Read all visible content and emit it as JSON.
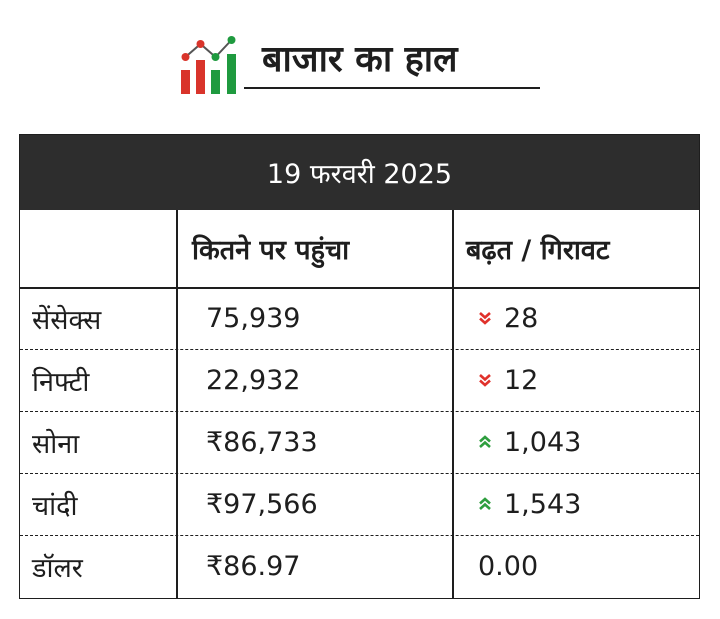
{
  "title": "बाजार का हाल",
  "date": "19 फरवरी 2025",
  "columns": [
    "",
    "कितने पर पहुंचा",
    "बढ़त / गिरावट"
  ],
  "rows": [
    {
      "name": "सेंसेक्स",
      "value": "75,939",
      "change": "28",
      "direction": "down"
    },
    {
      "name": "निफ्टी",
      "value": "22,932",
      "change": "12",
      "direction": "down"
    },
    {
      "name": "सोना",
      "value": "₹86,733",
      "change": "1,043",
      "direction": "up"
    },
    {
      "name": "चांदी",
      "value": "₹97,566",
      "change": "1,543",
      "direction": "up"
    },
    {
      "name": "डॉलर",
      "value": "₹86.97",
      "change": "0.00",
      "direction": "none"
    }
  ],
  "colors": {
    "up": "#2e9e3e",
    "down": "#e0312b",
    "header_bg": "#2d2d2d",
    "logo_red": "#d9342b",
    "logo_green": "#1f9a3f"
  },
  "icons": {
    "down": "double-chevron-down-icon",
    "up": "double-chevron-up-icon",
    "logo": "market-chart-icon"
  }
}
